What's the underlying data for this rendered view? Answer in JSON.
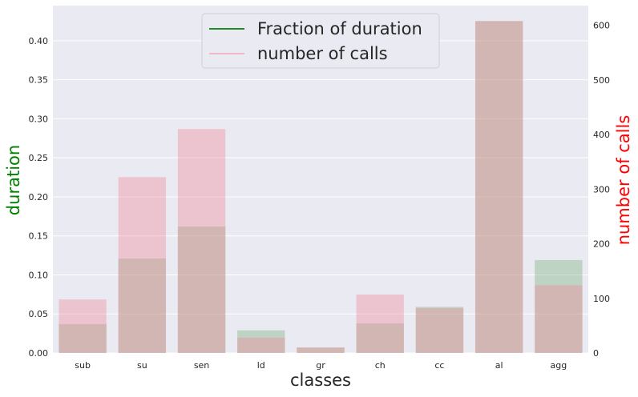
{
  "chart_data": {
    "type": "bar",
    "categories": [
      "sub",
      "su",
      "sen",
      "ld",
      "gr",
      "ch",
      "cc",
      "al",
      "agg"
    ],
    "series": [
      {
        "name": "Fraction of duration",
        "axis": "left",
        "color": "#5a9e5a",
        "legend_color": "#228b22",
        "values": [
          0.037,
          0.121,
          0.162,
          0.029,
          0.007,
          0.038,
          0.059,
          0.425,
          0.119
        ]
      },
      {
        "name": "number of calls",
        "axis": "right",
        "color": "#f08c9c",
        "legend_color": "#f2b8c0",
        "values": [
          98,
          322,
          410,
          28,
          10,
          107,
          82,
          608,
          124
        ]
      }
    ],
    "xlabel": "classes",
    "ylabel_left": "duration",
    "ylabel_right": "number of calls",
    "ylabel_left_color": "#008000",
    "ylabel_right_color": "#ff0000",
    "ylim_left": [
      0,
      0.445
    ],
    "ylim_right": [
      0,
      636
    ],
    "yticks_left": [
      "0.00",
      "0.05",
      "0.10",
      "0.15",
      "0.20",
      "0.25",
      "0.30",
      "0.35",
      "0.40"
    ],
    "yticks_right": [
      "0",
      "100",
      "200",
      "300",
      "400",
      "500",
      "600"
    ],
    "grid": true,
    "legend_position": "top-center",
    "background": "#eaeaf2"
  }
}
